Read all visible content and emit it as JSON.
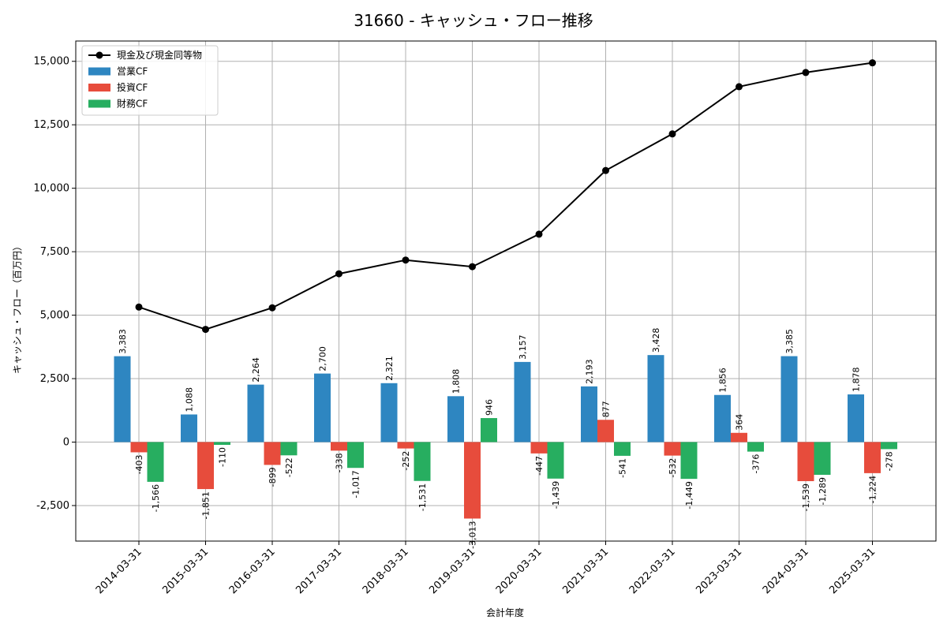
{
  "chart_data": {
    "type": "bar",
    "title": "31660 - キャッシュ・フロー推移",
    "xlabel": "会計年度",
    "ylabel": "キャッシュ・フロー（百万円）",
    "ylim": [
      -3900,
      15800
    ],
    "yticks": [
      -2500,
      0,
      2500,
      5000,
      7500,
      10000,
      12500,
      15000
    ],
    "ytick_labels": [
      "-2,500",
      "0",
      "2,500",
      "5,000",
      "7,500",
      "10,000",
      "12,500",
      "15,000"
    ],
    "grid": true,
    "legend_position": "top-left",
    "categories": [
      "2014-03-31",
      "2015-03-31",
      "2016-03-31",
      "2017-03-31",
      "2018-03-31",
      "2019-03-31",
      "2020-03-31",
      "2021-03-31",
      "2022-03-31",
      "2023-03-31",
      "2024-03-31",
      "2025-03-31"
    ],
    "series": [
      {
        "name": "営業CF",
        "kind": "bar",
        "color": "#2e86c1",
        "values": [
          3383,
          1088,
          2264,
          2700,
          2321,
          1808,
          3157,
          2193,
          3428,
          1856,
          3385,
          1878
        ],
        "labels": [
          "3,383",
          "1,088",
          "2,264",
          "2,700",
          "2,321",
          "1,808",
          "3,157",
          "2,193",
          "3,428",
          "1,856",
          "3,385",
          "1,878"
        ]
      },
      {
        "name": "投資CF",
        "kind": "bar",
        "color": "#e74c3c",
        "values": [
          -403,
          -1851,
          -899,
          -338,
          -252,
          -3013,
          -447,
          877,
          -532,
          364,
          -1539,
          -1224
        ],
        "labels": [
          "-403",
          "-1,851",
          "-899",
          "-338",
          "-252",
          "-3,013",
          "-447",
          "877",
          "-532",
          "364",
          "-1,539",
          "-1,224"
        ]
      },
      {
        "name": "財務CF",
        "kind": "bar",
        "color": "#27ae60",
        "values": [
          -1566,
          -110,
          -522,
          -1017,
          -1531,
          946,
          -1439,
          -541,
          -1449,
          -376,
          -1289,
          -278
        ],
        "labels": [
          "-1,566",
          "-110",
          "-522",
          "-1,017",
          "-1,531",
          "946",
          "-1,439",
          "-541",
          "-1,449",
          "-376",
          "-1,289",
          "-278"
        ]
      },
      {
        "name": "現金及び現金同等物",
        "kind": "line",
        "color": "#000000",
        "values": [
          5320,
          4440,
          5290,
          6630,
          7170,
          6910,
          8190,
          10700,
          12140,
          14000,
          14560,
          14940
        ]
      }
    ]
  }
}
